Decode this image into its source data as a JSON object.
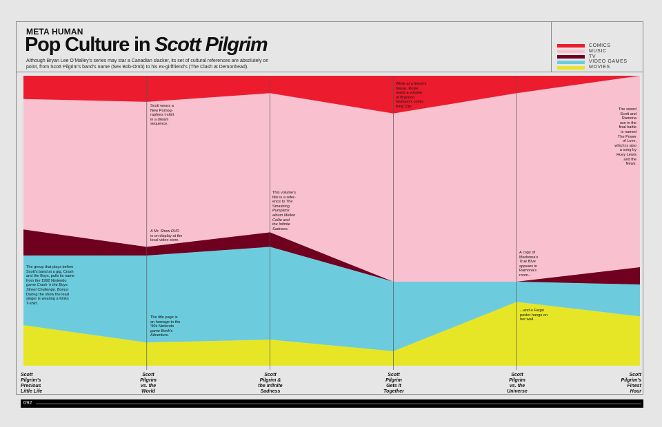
{
  "header": {
    "kicker": "META HUMAN",
    "title_plain": "Pop Culture in ",
    "title_italic": "Scott Pilgrim",
    "subtitle": "Although Bryan Lee O’Malley’s series may star a Canadian slacker, its set of cultural references are absolutely on point, from Scott Pilgrim’s band’s name (Sex Bob-Omb) to his ex-girlfriend’s (The Clash at Demonhead)."
  },
  "legend": [
    {
      "label": "COMICS",
      "color": "#ec1c2e"
    },
    {
      "label": "MUSIC",
      "color": "#f9c0cf"
    },
    {
      "label": "TV",
      "color": "#6f0020"
    },
    {
      "label": "VIDEO GAMES",
      "color": "#6cccde"
    },
    {
      "label": "MOVIES",
      "color": "#e6e627"
    }
  ],
  "chart_data": {
    "type": "area",
    "stacked": true,
    "normalized": true,
    "categories": [
      "Scott Pilgrim's Precious Little Life",
      "Scott Pilgrim vs. the World",
      "Scott Pilgrim & the Infinite Sadness",
      "Scott Pilgrim Gets It Together",
      "Scott Pilgrim vs. the Universe",
      "Scott Pilgrim's Finest Hour"
    ],
    "ylim": [
      0,
      100
    ],
    "series": [
      {
        "name": "MOVIES",
        "color": "#e6e627",
        "values": [
          14,
          8,
          9,
          5,
          22,
          17
        ]
      },
      {
        "name": "VIDEO GAMES",
        "color": "#6cccde",
        "values": [
          24,
          30,
          32,
          24,
          7,
          11
        ]
      },
      {
        "name": "TV",
        "color": "#6f0020",
        "values": [
          9,
          3,
          5,
          0,
          0,
          6
        ]
      },
      {
        "name": "MUSIC",
        "color": "#f9c0cf",
        "values": [
          45,
          50,
          48,
          58,
          65,
          66
        ]
      },
      {
        "name": "COMICS",
        "color": "#ec1c2e",
        "values": [
          8,
          9,
          6,
          13,
          6,
          0
        ]
      }
    ]
  },
  "x_labels": [
    [
      "Scott",
      "Pilgrim’s",
      "Precious",
      "Little Life"
    ],
    [
      "Scott",
      "Pilgrim",
      "vs. the",
      "World"
    ],
    [
      "Scott",
      "Pilgrim &",
      "the Infinite",
      "Sadness"
    ],
    [
      "Scott",
      "Pilgrim",
      "Gets It",
      "Together"
    ],
    [
      "Scott",
      "Pilgrim",
      "vs. the",
      "Universe"
    ],
    [
      "Scott",
      "Pilgrim’s",
      "Finest",
      "Hour"
    ]
  ],
  "annotations": {
    "a1": [
      "The group that plays before",
      "Scott’s band at a gig, Crash",
      "and the Boys, pulls its name",
      "from the 1992 Nintendo",
      "game Crash ’n the Boys:",
      "Street Challenge. Bonus:",
      "During the show the lead",
      "singer is wearing a Kinks",
      "T-shirt."
    ],
    "a2": [
      "Scott wears a",
      "New Pornog-",
      "raphers t-shirt",
      "in a dream",
      "sequence."
    ],
    "a3": [
      "A Mr. Show DVD",
      "is on display at the",
      "local video store."
    ],
    "a4": [
      "The title page is",
      "an homage to the",
      "’90s Nintendo",
      "game Bonk’s",
      "Adventure."
    ],
    "a5": [
      "This volume’s",
      "title is a refer-",
      "ence to The",
      "Smashing",
      "Pumpkins’",
      "album Mellon",
      "Collie and",
      "the Infinite",
      "Sadness."
    ],
    "a6": [
      "While at a friend’s",
      "house, Roxie",
      "reads a volume",
      "of Brandon",
      "Graham’s comic",
      "King City."
    ],
    "a7": [
      "A copy of",
      "Madonna’s",
      "True Blue",
      "appears in",
      "Ramona’s",
      "room..."
    ],
    "a8": [
      "...and a Fargo",
      "poster hangs on",
      "her wall."
    ],
    "a9": [
      "The sword",
      "Scott and",
      "Ramona",
      "use in the",
      "final battle",
      "is named",
      "The Power",
      "of Love,",
      "which is also",
      "a song by",
      "Huey Lewis",
      "and the",
      "News."
    ]
  },
  "footer": {
    "page_number": "092"
  }
}
